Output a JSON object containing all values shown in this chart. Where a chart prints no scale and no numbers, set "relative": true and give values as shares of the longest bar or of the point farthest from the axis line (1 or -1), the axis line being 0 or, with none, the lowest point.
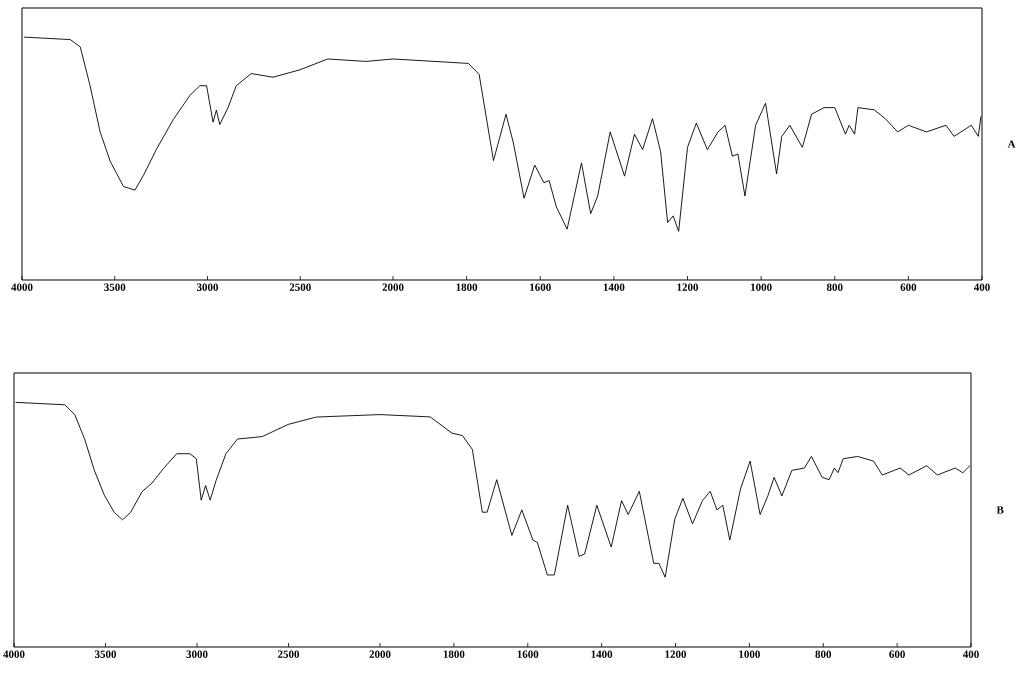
{
  "chart_data": [
    {
      "type": "line",
      "relative": true,
      "color": "#000000",
      "xlim": [
        4000,
        2000
      ],
      "xticks": [
        4000,
        3500,
        3000,
        2500,
        2000
      ],
      "x": [
        3990,
        3740,
        3686,
        3633,
        3579,
        3525,
        3453,
        3391,
        3346,
        3274,
        3185,
        3095,
        3041,
        3005,
        2970,
        2952,
        2934,
        2889,
        2845,
        2764,
        2647,
        2504,
        2352,
        2145,
        2000
      ],
      "values": [
        1.0,
        0.99,
        0.96,
        0.8,
        0.61,
        0.49,
        0.385,
        0.37,
        0.43,
        0.54,
        0.66,
        0.76,
        0.8,
        0.8,
        0.65,
        0.7,
        0.64,
        0.71,
        0.8,
        0.85,
        0.835,
        0.865,
        0.91,
        0.9,
        0.91
      ]
    },
    {
      "type": "line",
      "annotations": [
        "A"
      ],
      "relative": true,
      "color": "#000000",
      "xlim": [
        2000,
        400
      ],
      "xticks": [
        1800,
        1600,
        1400,
        1200,
        1000,
        800,
        600,
        400
      ],
      "x": [
        2000,
        1795,
        1766,
        1727,
        1693,
        1673,
        1644,
        1615,
        1590,
        1576,
        1556,
        1527,
        1488,
        1463,
        1444,
        1410,
        1371,
        1344,
        1322,
        1295,
        1273,
        1254,
        1239,
        1224,
        1200,
        1176,
        1146,
        1117,
        1098,
        1078,
        1063,
        1044,
        1015,
        988,
        958,
        944,
        922,
        888,
        863,
        829,
        800,
        771,
        761,
        746,
        737,
        693,
        663,
        629,
        600,
        551,
        498,
        476,
        429,
        410,
        403
      ],
      "values": [
        1.0,
        0.98,
        0.93,
        0.54,
        0.75,
        0.62,
        0.37,
        0.52,
        0.44,
        0.45,
        0.33,
        0.23,
        0.53,
        0.3,
        0.38,
        0.67,
        0.47,
        0.66,
        0.59,
        0.73,
        0.58,
        0.26,
        0.29,
        0.22,
        0.6,
        0.71,
        0.59,
        0.67,
        0.7,
        0.56,
        0.57,
        0.38,
        0.7,
        0.8,
        0.48,
        0.65,
        0.7,
        0.6,
        0.75,
        0.78,
        0.78,
        0.66,
        0.7,
        0.66,
        0.78,
        0.77,
        0.73,
        0.67,
        0.7,
        0.67,
        0.7,
        0.65,
        0.7,
        0.65,
        0.74
      ]
    },
    {
      "type": "line",
      "relative": true,
      "color": "#000000",
      "xlim": [
        4000,
        2000
      ],
      "xticks": [
        4000,
        3500,
        3000,
        2500,
        2000
      ],
      "x": [
        3991,
        3722,
        3668,
        3614,
        3560,
        3506,
        3452,
        3407,
        3363,
        3300,
        3246,
        3183,
        3111,
        3039,
        3004,
        2977,
        2953,
        2928,
        2896,
        2842,
        2779,
        2644,
        2501,
        2348,
        2000
      ],
      "values": [
        1.0,
        0.99,
        0.95,
        0.85,
        0.72,
        0.62,
        0.55,
        0.52,
        0.55,
        0.635,
        0.67,
        0.73,
        0.79,
        0.79,
        0.77,
        0.6,
        0.66,
        0.6,
        0.68,
        0.79,
        0.85,
        0.86,
        0.91,
        0.94,
        0.95
      ]
    },
    {
      "type": "line",
      "annotations": [
        "B"
      ],
      "relative": true,
      "color": "#000000",
      "xlim": [
        2000,
        400
      ],
      "xticks": [
        1800,
        1600,
        1400,
        1200,
        1000,
        800,
        600,
        400
      ],
      "x": [
        2000,
        1864,
        1805,
        1777,
        1750,
        1723,
        1710,
        1684,
        1643,
        1616,
        1586,
        1574,
        1547,
        1528,
        1492,
        1461,
        1446,
        1413,
        1374,
        1346,
        1328,
        1298,
        1259,
        1245,
        1228,
        1202,
        1180,
        1154,
        1127,
        1106,
        1088,
        1072,
        1053,
        1024,
        998,
        971,
        950,
        933,
        912,
        885,
        851,
        832,
        803,
        784,
        770,
        760,
        746,
        707,
        664,
        640,
        592,
        568,
        520,
        491,
        443,
        422,
        403
      ],
      "values": [
        1.0,
        0.99,
        0.92,
        0.91,
        0.85,
        0.58,
        0.58,
        0.72,
        0.48,
        0.59,
        0.46,
        0.45,
        0.31,
        0.31,
        0.61,
        0.39,
        0.4,
        0.61,
        0.43,
        0.63,
        0.57,
        0.67,
        0.36,
        0.36,
        0.3,
        0.55,
        0.64,
        0.53,
        0.63,
        0.67,
        0.59,
        0.61,
        0.46,
        0.68,
        0.8,
        0.57,
        0.65,
        0.73,
        0.65,
        0.76,
        0.77,
        0.82,
        0.73,
        0.72,
        0.77,
        0.75,
        0.81,
        0.82,
        0.8,
        0.74,
        0.77,
        0.74,
        0.78,
        0.74,
        0.77,
        0.75,
        0.78
      ]
    }
  ]
}
